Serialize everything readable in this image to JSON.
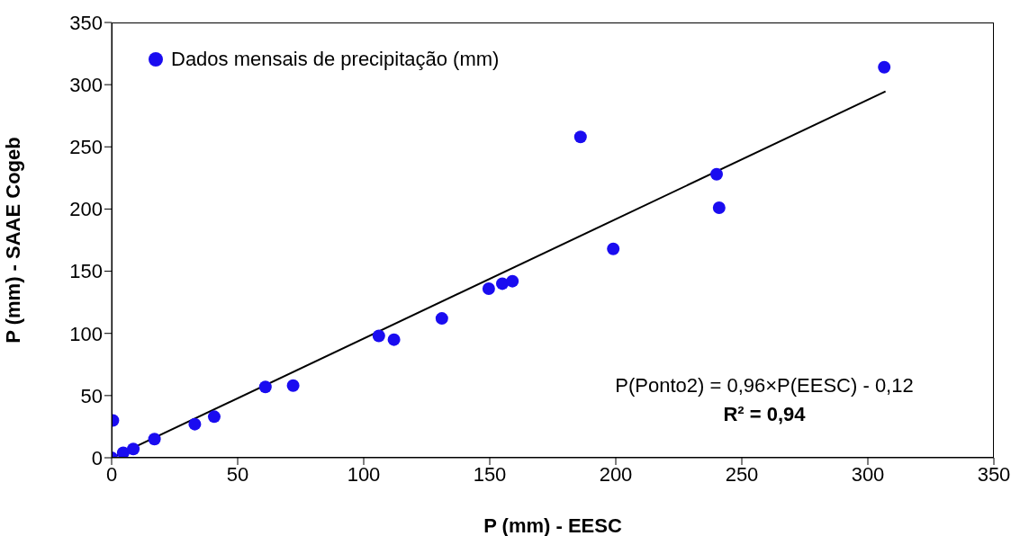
{
  "chart_data": {
    "type": "scatter",
    "xlabel": "P (mm) - EESC",
    "ylabel": "P (mm) -  SAAE Cogeb",
    "xlim": [
      0,
      350
    ],
    "xticks": [
      0,
      50,
      100,
      150,
      200,
      250,
      300,
      350
    ],
    "ylim": [
      0,
      350
    ],
    "yticks": [
      0,
      50,
      100,
      150,
      200,
      250,
      300,
      350
    ],
    "grid": false,
    "legend": "top left",
    "marker": "circle",
    "series": [
      {
        "name": "Dados mensais de precipitação (mm)",
        "color": "#1a0cf0",
        "x": [
          0,
          0.5,
          4.6,
          8.6,
          17,
          33,
          40.7,
          61,
          72,
          106,
          112,
          131,
          149.6,
          155,
          159,
          186,
          199,
          240,
          241,
          306.5
        ],
        "values": [
          0,
          30,
          4,
          7,
          15,
          27,
          33,
          57,
          58,
          98,
          95,
          112,
          136,
          140,
          142,
          258,
          168,
          228,
          201,
          314
        ]
      },
      {
        "type": "line",
        "color": "#000000",
        "marker": "none",
        "x": [
          1,
          307
        ],
        "values": [
          0.8,
          294.6
        ]
      }
    ],
    "annotations": [
      "P(Ponto2) = 0,96×P(EESC) - 0,12",
      "R² = 0,94"
    ]
  }
}
